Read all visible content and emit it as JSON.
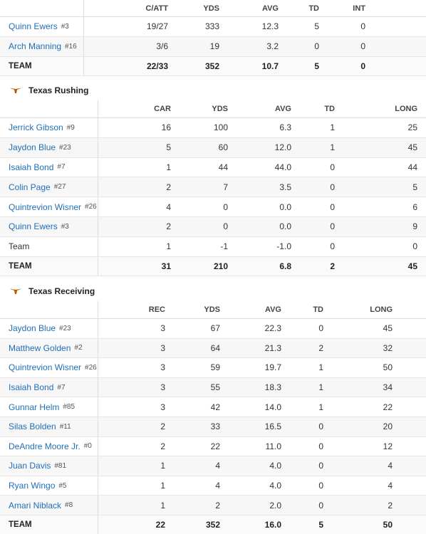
{
  "colors": {
    "link": "#1f6fb8",
    "longhorn": "#bf5700"
  },
  "passing": {
    "headers": [
      "C/ATT",
      "YDS",
      "AVG",
      "TD",
      "INT"
    ],
    "rows": [
      {
        "name": "Quinn Ewers",
        "num": "#3",
        "vals": [
          "19/27",
          "333",
          "12.3",
          "5",
          "0"
        ]
      },
      {
        "name": "Arch Manning",
        "num": "#16",
        "vals": [
          "3/6",
          "19",
          "3.2",
          "0",
          "0"
        ]
      }
    ],
    "total": {
      "name": "TEAM",
      "vals": [
        "22/33",
        "352",
        "10.7",
        "5",
        "0"
      ]
    }
  },
  "rushing": {
    "title": "Texas Rushing",
    "icon": "longhorn-icon",
    "headers": [
      "CAR",
      "YDS",
      "AVG",
      "TD",
      "LONG"
    ],
    "rows": [
      {
        "name": "Jerrick Gibson",
        "num": "#9",
        "vals": [
          "16",
          "100",
          "6.3",
          "1",
          "25"
        ]
      },
      {
        "name": "Jaydon Blue",
        "num": "#23",
        "vals": [
          "5",
          "60",
          "12.0",
          "1",
          "45"
        ]
      },
      {
        "name": "Isaiah Bond",
        "num": "#7",
        "vals": [
          "1",
          "44",
          "44.0",
          "0",
          "44"
        ]
      },
      {
        "name": "Colin Page",
        "num": "#27",
        "vals": [
          "2",
          "7",
          "3.5",
          "0",
          "5"
        ]
      },
      {
        "name": "Quintrevion Wisner",
        "num": "#26",
        "vals": [
          "4",
          "0",
          "0.0",
          "0",
          "6"
        ]
      },
      {
        "name": "Quinn Ewers",
        "num": "#3",
        "vals": [
          "2",
          "0",
          "0.0",
          "0",
          "9"
        ]
      },
      {
        "name": "Team",
        "num": "",
        "plain": true,
        "vals": [
          "1",
          "-1",
          "-1.0",
          "0",
          "0"
        ]
      }
    ],
    "total": {
      "name": "TEAM",
      "vals": [
        "31",
        "210",
        "6.8",
        "2",
        "45"
      ]
    }
  },
  "receiving": {
    "title": "Texas Receiving",
    "icon": "longhorn-icon",
    "headers": [
      "REC",
      "YDS",
      "AVG",
      "TD",
      "LONG"
    ],
    "rows": [
      {
        "name": "Jaydon Blue",
        "num": "#23",
        "vals": [
          "3",
          "67",
          "22.3",
          "0",
          "45"
        ]
      },
      {
        "name": "Matthew Golden",
        "num": "#2",
        "vals": [
          "3",
          "64",
          "21.3",
          "2",
          "32"
        ]
      },
      {
        "name": "Quintrevion Wisner",
        "num": "#26",
        "vals": [
          "3",
          "59",
          "19.7",
          "1",
          "50"
        ]
      },
      {
        "name": "Isaiah Bond",
        "num": "#7",
        "vals": [
          "3",
          "55",
          "18.3",
          "1",
          "34"
        ]
      },
      {
        "name": "Gunnar Helm",
        "num": "#85",
        "vals": [
          "3",
          "42",
          "14.0",
          "1",
          "22"
        ]
      },
      {
        "name": "Silas Bolden",
        "num": "#11",
        "vals": [
          "2",
          "33",
          "16.5",
          "0",
          "20"
        ]
      },
      {
        "name": "DeAndre Moore Jr.",
        "num": "#0",
        "vals": [
          "2",
          "22",
          "11.0",
          "0",
          "12"
        ]
      },
      {
        "name": "Juan Davis",
        "num": "#81",
        "vals": [
          "1",
          "4",
          "4.0",
          "0",
          "4"
        ]
      },
      {
        "name": "Ryan Wingo",
        "num": "#5",
        "vals": [
          "1",
          "4",
          "4.0",
          "0",
          "4"
        ]
      },
      {
        "name": "Amari Niblack",
        "num": "#8",
        "vals": [
          "1",
          "2",
          "2.0",
          "0",
          "2"
        ]
      }
    ],
    "total": {
      "name": "TEAM",
      "vals": [
        "22",
        "352",
        "16.0",
        "5",
        "50"
      ]
    }
  }
}
